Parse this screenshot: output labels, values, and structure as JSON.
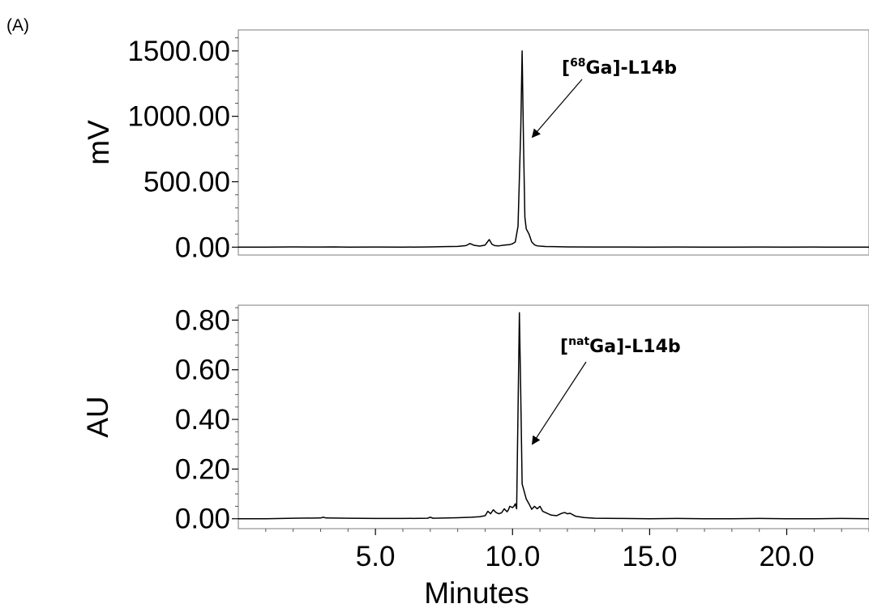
{
  "panel_label": "(A)",
  "chart_data": [
    {
      "type": "line",
      "name": "top",
      "ylabel": "mV",
      "xlabel": "",
      "xlim": [
        0,
        23
      ],
      "ylim": [
        -60,
        1660
      ],
      "yticks": [
        0,
        500,
        1000,
        1500
      ],
      "ytick_labels": [
        "0.00",
        "500.00",
        "1000.00",
        "1500.00"
      ],
      "y_minor_step": 100,
      "grid": false,
      "annotation": {
        "prefix": "[",
        "sup": "68",
        "suffix": "Ga]-L14b",
        "point": [
          10.6,
          840
        ]
      },
      "series": [
        {
          "x": [
            0.0,
            1.0,
            2.0,
            3.0,
            3.5,
            4.0,
            5.0,
            6.0,
            7.0,
            7.5,
            8.0,
            8.3,
            8.45,
            8.6,
            8.8,
            9.0,
            9.15,
            9.25,
            9.35,
            9.5,
            9.7,
            9.9,
            10.0,
            10.1,
            10.2,
            10.3,
            10.35,
            10.4,
            10.45,
            10.5,
            10.55,
            10.6,
            10.7,
            10.8,
            10.9,
            11.0,
            11.2,
            11.5,
            12.0,
            13.0,
            14.0,
            15.0,
            16.0,
            17.0,
            18.0,
            19.0,
            20.0,
            21.0,
            22.0,
            23.0
          ],
          "y": [
            0,
            0,
            2,
            1,
            2,
            0,
            1,
            0,
            2,
            4,
            6,
            12,
            28,
            14,
            8,
            16,
            58,
            22,
            12,
            10,
            16,
            20,
            26,
            40,
            160,
            900,
            1500,
            800,
            230,
            140,
            120,
            100,
            40,
            18,
            10,
            8,
            5,
            4,
            2,
            1,
            1,
            0,
            1,
            0,
            0,
            1,
            0,
            1,
            0,
            0
          ]
        }
      ]
    },
    {
      "type": "line",
      "name": "bottom",
      "ylabel": "AU",
      "xlabel": "Minutes",
      "xlim": [
        0,
        23
      ],
      "ylim": [
        -0.04,
        0.86
      ],
      "xticks": [
        5,
        10,
        15,
        20
      ],
      "xtick_labels": [
        "5.0",
        "10.0",
        "15.0",
        "20.0"
      ],
      "x_minor_step": 1,
      "yticks": [
        0,
        0.2,
        0.4,
        0.6,
        0.8
      ],
      "ytick_labels": [
        "0.00",
        "0.20",
        "0.40",
        "0.60",
        "0.80"
      ],
      "y_minor_step": 0.05,
      "grid": false,
      "annotation": {
        "prefix": "[",
        "sup": "nat",
        "suffix": "Ga]-L14b",
        "point": [
          10.6,
          0.3
        ]
      },
      "series": [
        {
          "x": [
            0.0,
            1.0,
            2.0,
            3.0,
            3.1,
            3.2,
            4.0,
            5.0,
            6.0,
            6.9,
            7.0,
            7.1,
            8.0,
            8.5,
            8.8,
            9.0,
            9.1,
            9.2,
            9.3,
            9.4,
            9.5,
            9.6,
            9.7,
            9.8,
            9.85,
            9.9,
            10.0,
            10.05,
            10.1,
            10.15,
            10.25,
            10.3,
            10.35,
            10.4,
            10.45,
            10.5,
            10.6,
            10.7,
            10.8,
            10.9,
            11.0,
            11.1,
            11.2,
            11.4,
            11.6,
            11.8,
            11.9,
            12.0,
            12.1,
            12.3,
            12.6,
            13.0,
            14.0,
            15.0,
            16.0,
            17.0,
            18.0,
            19.0,
            20.0,
            21.0,
            22.0,
            23.0
          ],
          "y": [
            0.0,
            0.0,
            0.002,
            0.003,
            0.006,
            0.003,
            0.002,
            0.001,
            0.001,
            0.002,
            0.006,
            0.002,
            0.004,
            0.006,
            0.008,
            0.012,
            0.03,
            0.02,
            0.036,
            0.025,
            0.02,
            0.024,
            0.04,
            0.028,
            0.036,
            0.05,
            0.045,
            0.05,
            0.06,
            0.04,
            0.83,
            0.5,
            0.14,
            0.12,
            0.1,
            0.08,
            0.06,
            0.038,
            0.05,
            0.04,
            0.05,
            0.03,
            0.025,
            0.015,
            0.012,
            0.022,
            0.025,
            0.02,
            0.022,
            0.01,
            0.005,
            0.002,
            0.001,
            0.0,
            0.001,
            0.0,
            0.0,
            0.001,
            0.0,
            0.0,
            0.001,
            0.0
          ]
        }
      ]
    }
  ]
}
